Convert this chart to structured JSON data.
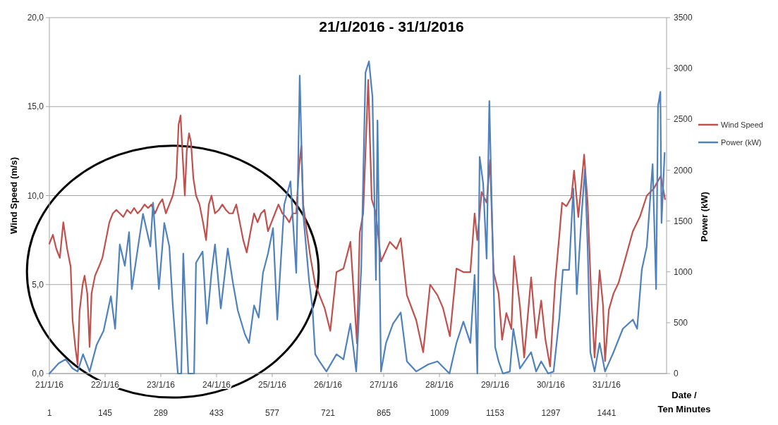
{
  "chart_data": {
    "type": "line",
    "title": "21/1/2016 - 31/1/2016",
    "xlabel": "Date / Ten Minutes",
    "ylabel": "Wind Speed (m/s)",
    "y2label": "Power (kW)",
    "xlim": [
      1,
      1596
    ],
    "x2ticks": [
      {
        "value": "2016-01-21T00:00",
        "label": "21/1/16"
      },
      {
        "value": "2016-01-22T00:00",
        "label": "22/1/16"
      },
      {
        "value": "2016-01-23T00:00",
        "label": "23/1/16"
      },
      {
        "value": "2016-01-24T00:00",
        "label": "24/1/16"
      },
      {
        "value": "2016-01-25T00:00",
        "label": "25/1/16"
      },
      {
        "value": "2016-01-26T00:00",
        "label": "26/1/16"
      },
      {
        "value": "2016-01-27T00:00",
        "label": "27/1/16"
      },
      {
        "value": "2016-01-28T00:00",
        "label": "28/1/16"
      },
      {
        "value": "2016-01-29T00:00",
        "label": "29/1/16"
      },
      {
        "value": "2016-01-30T00:00",
        "label": "30/1/16"
      },
      {
        "value": "2016-01-31T00:00",
        "label": "31/1/16"
      }
    ],
    "x2lim": [
      "2016-01-21T00:00",
      "2016-02-01T01:50"
    ],
    "xticks": [
      1,
      145,
      289,
      433,
      577,
      721,
      865,
      1009,
      1153,
      1297,
      1441
    ],
    "ylim": [
      0,
      20
    ],
    "yticks": [
      {
        "value": 0,
        "label": "0,0"
      },
      {
        "value": 5,
        "label": "5,0"
      },
      {
        "value": 10,
        "label": "10,0"
      },
      {
        "value": 15,
        "label": "15,0"
      },
      {
        "value": 20,
        "label": "20,0"
      }
    ],
    "y2lim": [
      0,
      3500
    ],
    "y2ticks": [
      0,
      500,
      1000,
      1500,
      2000,
      2500,
      3000,
      3500
    ],
    "grid": "y",
    "legend": "right",
    "marker": "none",
    "line_style": "solid",
    "series": [
      {
        "name": "Wind Speed",
        "color": "#c0504d",
        "x": [
          1,
          10,
          19,
          28,
          37,
          47,
          56,
          61,
          68,
          74,
          79,
          87,
          92,
          99,
          105,
          110,
          119,
          129,
          138,
          147,
          156,
          165,
          174,
          183,
          192,
          202,
          211,
          220,
          229,
          238,
          247,
          256,
          265,
          274,
          284,
          293,
          302,
          311,
          320,
          329,
          335,
          340,
          346,
          351,
          356,
          362,
          367,
          373,
          380,
          389,
          398,
          406,
          413,
          420,
          429,
          439,
          448,
          457,
          466,
          475,
          484,
          493,
          502,
          511,
          521,
          530,
          539,
          548,
          557,
          566,
          575,
          584,
          593,
          603,
          612,
          621,
          630,
          639,
          646,
          652,
          657,
          666,
          676,
          688,
          712,
          727,
          743,
          761,
          779,
          796,
          803,
          812,
          825,
          834,
          845,
          858,
          881,
          898,
          909,
          925,
          949,
          967,
          985,
          1004,
          1018,
          1036,
          1053,
          1071,
          1089,
          1100,
          1107,
          1118,
          1131,
          1140,
          1149,
          1162,
          1171,
          1182,
          1195,
          1202,
          1217,
          1228,
          1246,
          1259,
          1272,
          1283,
          1295,
          1308,
          1319,
          1326,
          1337,
          1350,
          1357,
          1368,
          1383,
          1392,
          1401,
          1410,
          1423,
          1432,
          1437,
          1447,
          1459,
          1472,
          1490,
          1509,
          1527,
          1545,
          1563,
          1581,
          1592
        ],
        "values": [
          7.3,
          7.8,
          7.0,
          6.5,
          8.5,
          7.0,
          6.0,
          3.0,
          1.5,
          0.5,
          3.5,
          5.0,
          5.5,
          4.5,
          1.5,
          4.5,
          5.5,
          6.0,
          6.5,
          7.5,
          8.5,
          9.0,
          9.2,
          9.0,
          8.8,
          9.2,
          9.0,
          9.3,
          9.0,
          9.2,
          9.5,
          9.3,
          9.5,
          9.0,
          9.5,
          9.8,
          9.0,
          9.5,
          10.0,
          11.0,
          14.0,
          14.5,
          12.0,
          10.0,
          12.5,
          13.5,
          13.0,
          11.0,
          10.0,
          9.5,
          8.5,
          7.5,
          9.5,
          10.0,
          9.0,
          9.2,
          9.5,
          9.2,
          9.0,
          9.0,
          9.5,
          8.5,
          7.5,
          6.8,
          8.0,
          9.0,
          8.5,
          9.0,
          9.2,
          8.0,
          8.5,
          9.0,
          9.5,
          9.0,
          8.8,
          8.5,
          9.0,
          9.0,
          11.5,
          12.8,
          9.5,
          8.0,
          6.5,
          5.0,
          3.7,
          2.4,
          5.7,
          5.9,
          7.4,
          1.7,
          7.9,
          9.0,
          16.5,
          9.8,
          9.0,
          6.3,
          7.4,
          7.0,
          7.6,
          4.4,
          3.0,
          1.2,
          5.0,
          4.4,
          3.7,
          2.1,
          5.9,
          5.7,
          5.7,
          9.0,
          7.5,
          10.2,
          9.6,
          12.0,
          5.7,
          4.5,
          1.9,
          3.4,
          2.5,
          6.6,
          3.8,
          0.9,
          5.4,
          2.0,
          4.1,
          1.9,
          0.4,
          5.1,
          7.8,
          9.6,
          9.4,
          9.9,
          11.4,
          8.8,
          12.3,
          9.6,
          4.5,
          0.9,
          5.8,
          3.8,
          0.7,
          3.6,
          4.5,
          5.1,
          6.5,
          8.0,
          8.8,
          10.0,
          10.4,
          11.1,
          9.8
        ]
      },
      {
        "name": "Power (kW)",
        "color": "#4f81bd",
        "axis": "y2",
        "x": [
          1,
          25,
          43,
          61,
          74,
          88,
          105,
          123,
          141,
          160,
          171,
          183,
          196,
          207,
          214,
          233,
          243,
          262,
          269,
          284,
          298,
          311,
          320,
          333,
          342,
          347,
          360,
          375,
          380,
          397,
          408,
          420,
          429,
          444,
          462,
          475,
          488,
          506,
          517,
          530,
          542,
          553,
          566,
          579,
          590,
          608,
          624,
          639,
          648,
          657,
          672,
          681,
          688,
          699,
          717,
          743,
          761,
          779,
          794,
          807,
          818,
          827,
          836,
          845,
          849,
          858,
          871,
          889,
          909,
          925,
          949,
          980,
          1004,
          1035,
          1053,
          1071,
          1089,
          1100,
          1107,
          1113,
          1122,
          1131,
          1138,
          1146,
          1153,
          1162,
          1173,
          1191,
          1200,
          1217,
          1246,
          1259,
          1272,
          1290,
          1304,
          1319,
          1328,
          1344,
          1355,
          1364,
          1377,
          1385,
          1392,
          1399,
          1410,
          1423,
          1437,
          1459,
          1483,
          1509,
          1520,
          1532,
          1545,
          1560,
          1569,
          1574,
          1580,
          1583,
          1591
        ],
        "values": [
          0,
          100,
          140,
          50,
          20,
          190,
          20,
          280,
          420,
          760,
          440,
          1270,
          1060,
          1390,
          830,
          1320,
          1570,
          1250,
          1680,
          830,
          1480,
          1250,
          670,
          0,
          0,
          1180,
          0,
          0,
          1090,
          1200,
          490,
          990,
          1270,
          640,
          1230,
          900,
          620,
          390,
          300,
          670,
          550,
          990,
          1180,
          1430,
          530,
          1660,
          1890,
          990,
          2930,
          1570,
          920,
          640,
          190,
          120,
          20,
          190,
          140,
          490,
          20,
          1040,
          2960,
          3070,
          2720,
          920,
          2490,
          20,
          300,
          490,
          600,
          120,
          20,
          90,
          120,
          0,
          300,
          510,
          300,
          970,
          0,
          2130,
          1870,
          1130,
          2680,
          1370,
          260,
          120,
          0,
          20,
          440,
          50,
          210,
          20,
          120,
          0,
          20,
          550,
          1020,
          1020,
          1820,
          780,
          1590,
          2010,
          1250,
          210,
          20,
          300,
          20,
          210,
          440,
          530,
          440,
          1020,
          1250,
          2060,
          830,
          2630,
          2770,
          1480,
          2170
        ]
      }
    ]
  }
}
